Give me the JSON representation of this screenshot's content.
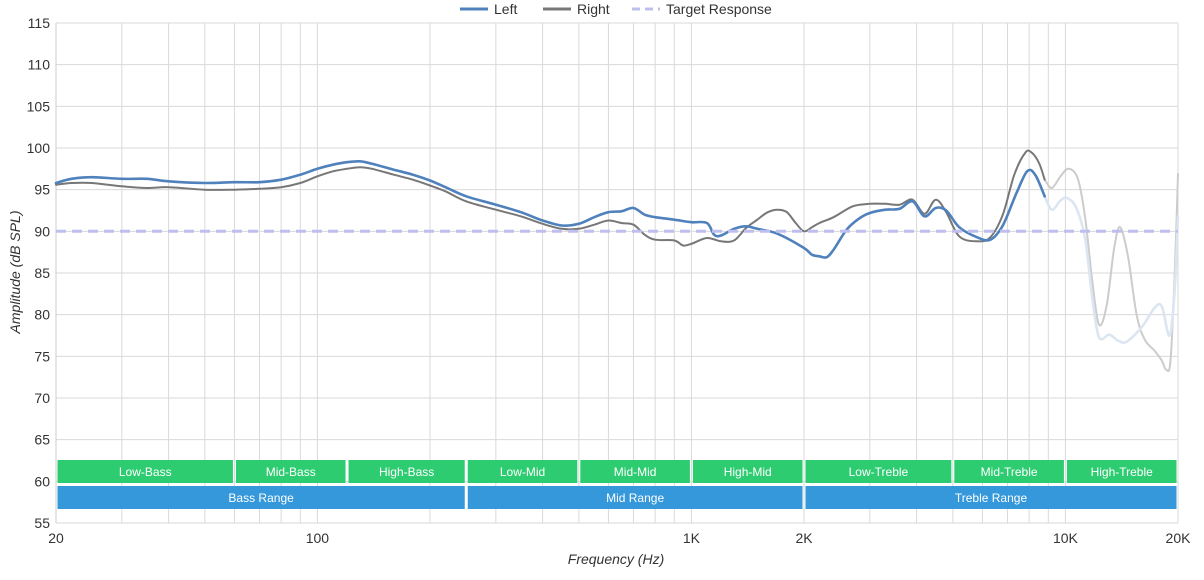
{
  "chart_data": {
    "type": "line",
    "title": "",
    "xlabel": "Frequency (Hz)",
    "ylabel": "Amplitude (dB SPL)",
    "xscale": "log",
    "xlim": [
      20,
      20000
    ],
    "ylim": [
      55,
      115
    ],
    "grid": true,
    "legend_position": "top-center",
    "x_ticks": [
      {
        "value": 20,
        "label": "20"
      },
      {
        "value": 100,
        "label": "100"
      },
      {
        "value": 1000,
        "label": "1K"
      },
      {
        "value": 2000,
        "label": "2K"
      },
      {
        "value": 10000,
        "label": "10K"
      },
      {
        "value": 20000,
        "label": "20K"
      }
    ],
    "y_ticks": [
      55,
      60,
      65,
      70,
      75,
      80,
      85,
      90,
      95,
      100,
      105,
      110,
      115
    ],
    "x_gridlines": [
      30,
      40,
      50,
      60,
      70,
      80,
      90,
      100,
      200,
      300,
      400,
      500,
      600,
      700,
      800,
      900,
      1000,
      2000,
      3000,
      4000,
      5000,
      6000,
      7000,
      8000,
      9000,
      10000,
      20000
    ],
    "series": [
      {
        "name": "Left",
        "color": "#4f81bd",
        "points": [
          [
            20,
            95.8
          ],
          [
            22,
            96.3
          ],
          [
            25,
            96.5
          ],
          [
            30,
            96.3
          ],
          [
            35,
            96.3
          ],
          [
            40,
            96.0
          ],
          [
            50,
            95.8
          ],
          [
            60,
            95.9
          ],
          [
            70,
            95.9
          ],
          [
            80,
            96.2
          ],
          [
            90,
            96.8
          ],
          [
            100,
            97.5
          ],
          [
            110,
            98.0
          ],
          [
            120,
            98.3
          ],
          [
            130,
            98.4
          ],
          [
            140,
            98.1
          ],
          [
            160,
            97.4
          ],
          [
            180,
            96.8
          ],
          [
            200,
            96.1
          ],
          [
            220,
            95.3
          ],
          [
            250,
            94.2
          ],
          [
            300,
            93.2
          ],
          [
            350,
            92.3
          ],
          [
            400,
            91.3
          ],
          [
            450,
            90.7
          ],
          [
            500,
            90.9
          ],
          [
            550,
            91.7
          ],
          [
            600,
            92.3
          ],
          [
            650,
            92.4
          ],
          [
            700,
            92.8
          ],
          [
            750,
            92.0
          ],
          [
            800,
            91.7
          ],
          [
            900,
            91.4
          ],
          [
            1000,
            91.1
          ],
          [
            1100,
            91.0
          ],
          [
            1150,
            89.6
          ],
          [
            1200,
            89.5
          ],
          [
            1300,
            90.3
          ],
          [
            1400,
            90.6
          ],
          [
            1500,
            90.3
          ],
          [
            1700,
            89.7
          ],
          [
            2000,
            88.0
          ],
          [
            2100,
            87.2
          ],
          [
            2200,
            87.0
          ],
          [
            2300,
            86.9
          ],
          [
            2400,
            87.8
          ],
          [
            2600,
            90.2
          ],
          [
            2800,
            91.5
          ],
          [
            3000,
            92.2
          ],
          [
            3300,
            92.6
          ],
          [
            3600,
            92.7
          ],
          [
            3900,
            93.6
          ],
          [
            4200,
            91.8
          ],
          [
            4500,
            92.8
          ],
          [
            4800,
            92.5
          ],
          [
            5200,
            90.5
          ],
          [
            5800,
            89.3
          ],
          [
            6300,
            89.0
          ],
          [
            6800,
            90.7
          ],
          [
            7400,
            94.6
          ],
          [
            7900,
            97.2
          ],
          [
            8300,
            96.8
          ],
          [
            8800,
            94.2
          ]
        ]
      },
      {
        "name": "Left",
        "color": "#dce6f2",
        "points": [
          [
            8800,
            94.2
          ],
          [
            9200,
            92.6
          ],
          [
            9700,
            93.7
          ],
          [
            10100,
            94.0
          ],
          [
            10700,
            92.8
          ],
          [
            11300,
            89.0
          ],
          [
            11800,
            82.0
          ],
          [
            12300,
            77.3
          ],
          [
            13100,
            77.6
          ],
          [
            13800,
            76.9
          ],
          [
            14500,
            76.7
          ],
          [
            15500,
            77.8
          ],
          [
            16300,
            79.0
          ],
          [
            17300,
            80.8
          ],
          [
            18100,
            81.0
          ],
          [
            19000,
            77.5
          ],
          [
            19600,
            83.0
          ],
          [
            20000,
            91.8
          ]
        ]
      },
      {
        "name": "Right",
        "color": "#777777",
        "points": [
          [
            20,
            95.6
          ],
          [
            22,
            95.8
          ],
          [
            25,
            95.8
          ],
          [
            30,
            95.4
          ],
          [
            35,
            95.2
          ],
          [
            40,
            95.3
          ],
          [
            50,
            95.0
          ],
          [
            60,
            95.0
          ],
          [
            70,
            95.1
          ],
          [
            80,
            95.3
          ],
          [
            90,
            95.8
          ],
          [
            100,
            96.6
          ],
          [
            110,
            97.2
          ],
          [
            120,
            97.5
          ],
          [
            130,
            97.7
          ],
          [
            140,
            97.5
          ],
          [
            160,
            96.8
          ],
          [
            180,
            96.2
          ],
          [
            200,
            95.5
          ],
          [
            220,
            94.8
          ],
          [
            250,
            93.6
          ],
          [
            300,
            92.6
          ],
          [
            350,
            91.8
          ],
          [
            400,
            90.9
          ],
          [
            450,
            90.3
          ],
          [
            500,
            90.3
          ],
          [
            550,
            90.8
          ],
          [
            600,
            91.3
          ],
          [
            650,
            91.0
          ],
          [
            700,
            90.8
          ],
          [
            750,
            89.6
          ],
          [
            800,
            89.0
          ],
          [
            900,
            88.9
          ],
          [
            950,
            88.3
          ],
          [
            1000,
            88.5
          ],
          [
            1100,
            89.2
          ],
          [
            1200,
            88.8
          ],
          [
            1300,
            88.9
          ],
          [
            1400,
            90.4
          ],
          [
            1500,
            91.4
          ],
          [
            1600,
            92.3
          ],
          [
            1700,
            92.6
          ],
          [
            1800,
            92.3
          ],
          [
            1900,
            91.0
          ],
          [
            2000,
            90.0
          ],
          [
            2100,
            90.5
          ],
          [
            2200,
            91.0
          ],
          [
            2400,
            91.7
          ],
          [
            2700,
            93.0
          ],
          [
            3000,
            93.3
          ],
          [
            3300,
            93.3
          ],
          [
            3600,
            93.2
          ],
          [
            3900,
            93.8
          ],
          [
            4200,
            92.1
          ],
          [
            4500,
            93.8
          ],
          [
            4800,
            92.3
          ],
          [
            5200,
            89.4
          ],
          [
            5800,
            88.8
          ],
          [
            6300,
            89.3
          ],
          [
            6800,
            92.0
          ],
          [
            7300,
            96.8
          ],
          [
            7800,
            99.4
          ],
          [
            8100,
            99.5
          ],
          [
            8500,
            98.2
          ],
          [
            8800,
            96.2
          ]
        ]
      },
      {
        "name": "Right",
        "color": "#cccccc",
        "points": [
          [
            8800,
            96.2
          ],
          [
            9200,
            95.2
          ],
          [
            9700,
            96.6
          ],
          [
            10200,
            97.5
          ],
          [
            10800,
            96.3
          ],
          [
            11300,
            91.5
          ],
          [
            11800,
            84.0
          ],
          [
            12300,
            78.8
          ],
          [
            12900,
            81.2
          ],
          [
            13500,
            88.0
          ],
          [
            14000,
            90.5
          ],
          [
            14700,
            87.0
          ],
          [
            15500,
            80.0
          ],
          [
            16300,
            77.0
          ],
          [
            17300,
            75.7
          ],
          [
            18100,
            74.5
          ],
          [
            18600,
            73.4
          ],
          [
            19100,
            74.5
          ],
          [
            19600,
            85.0
          ],
          [
            20000,
            96.9
          ]
        ]
      },
      {
        "name": "Target Response",
        "color": "#bfbfef",
        "dashed": true,
        "points": [
          [
            20,
            90
          ],
          [
            20000,
            90
          ]
        ]
      }
    ],
    "legend": [
      {
        "label": "Left",
        "color": "#4f81bd",
        "dashed": false
      },
      {
        "label": "Right",
        "color": "#777777",
        "dashed": false
      },
      {
        "label": "Target Response",
        "color": "#bfbfef",
        "dashed": true
      }
    ],
    "bands": {
      "top": [
        {
          "label": "Low-Bass",
          "from": 20,
          "to": 60,
          "color": "#2ecc71"
        },
        {
          "label": "Mid-Bass",
          "from": 60,
          "to": 120,
          "color": "#2ecc71"
        },
        {
          "label": "High-Bass",
          "from": 120,
          "to": 250,
          "color": "#2ecc71"
        },
        {
          "label": "Low-Mid",
          "from": 250,
          "to": 500,
          "color": "#2ecc71"
        },
        {
          "label": "Mid-Mid",
          "from": 500,
          "to": 1000,
          "color": "#2ecc71"
        },
        {
          "label": "High-Mid",
          "from": 1000,
          "to": 2000,
          "color": "#2ecc71"
        },
        {
          "label": "Low-Treble",
          "from": 2000,
          "to": 5000,
          "color": "#2ecc71"
        },
        {
          "label": "Mid-Treble",
          "from": 5000,
          "to": 10000,
          "color": "#2ecc71"
        },
        {
          "label": "High-Treble",
          "from": 10000,
          "to": 20000,
          "color": "#2ecc71"
        }
      ],
      "bottom": [
        {
          "label": "Bass Range",
          "from": 20,
          "to": 250,
          "color": "#3498db"
        },
        {
          "label": "Mid Range",
          "from": 250,
          "to": 2000,
          "color": "#3498db"
        },
        {
          "label": "Treble Range",
          "from": 2000,
          "to": 20000,
          "color": "#3498db"
        }
      ]
    }
  }
}
